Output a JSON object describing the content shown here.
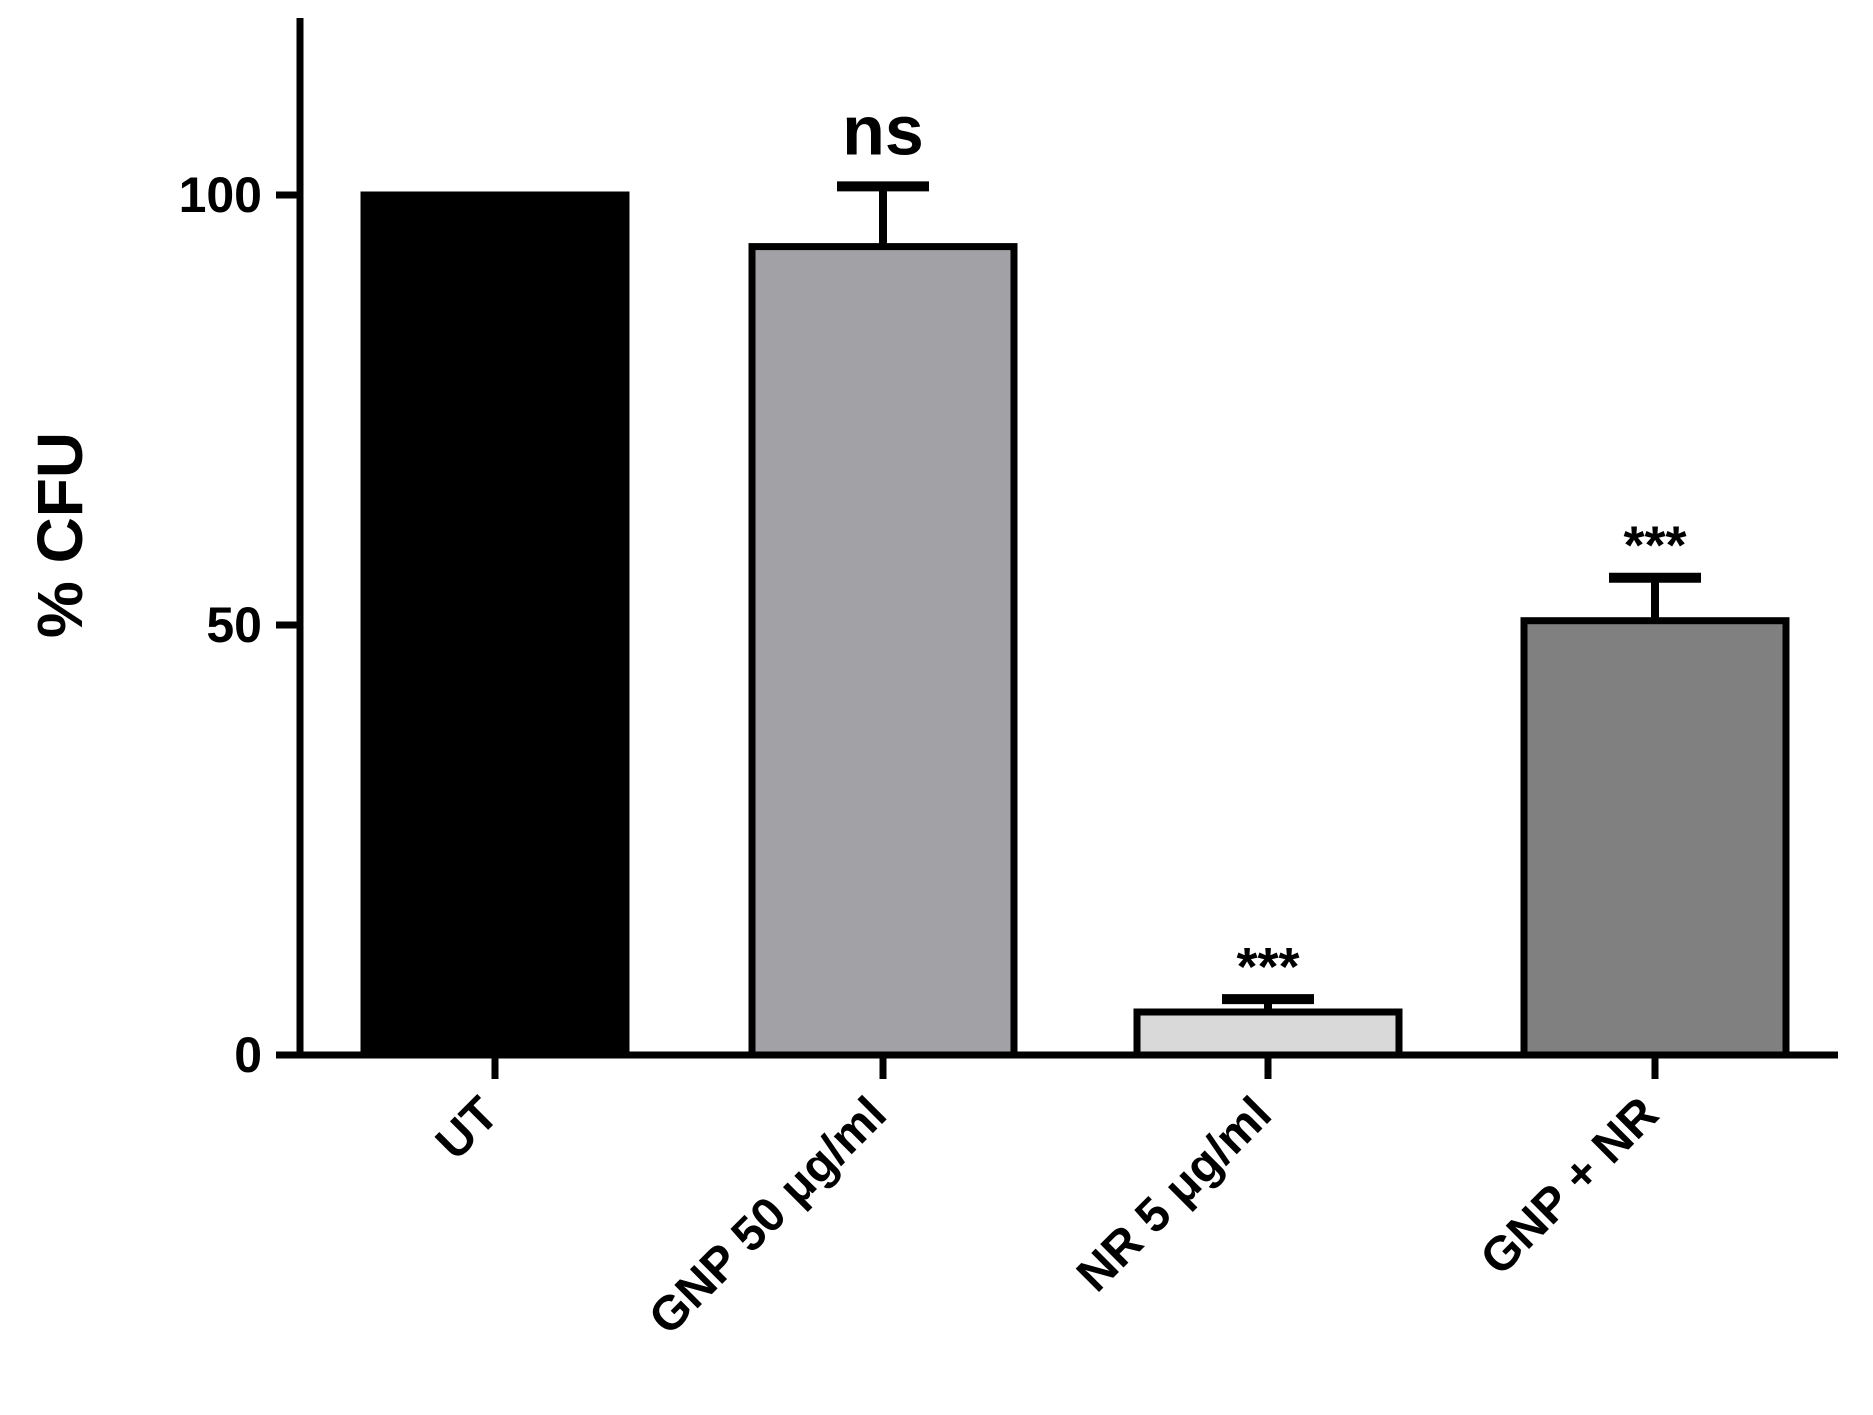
{
  "chart_data": {
    "type": "bar",
    "title": "",
    "xlabel": "",
    "ylabel": "% CFU",
    "ylim": [
      0,
      120
    ],
    "yticks": [
      "0",
      "50",
      "100"
    ],
    "grid": false,
    "categories": [
      "UT",
      "GNP 50 μg/ml",
      "NR 5 μg/ml",
      "GNP + NR"
    ],
    "values": [
      100,
      94,
      5,
      50.5
    ],
    "errors": [
      0,
      7,
      1.5,
      5
    ],
    "annotations": [
      "",
      "ns",
      "***",
      "***"
    ],
    "colors": [
      "#000000",
      "#a2a2a6",
      "#d9d9d9",
      "#808080"
    ],
    "edge_color": "#000000"
  }
}
